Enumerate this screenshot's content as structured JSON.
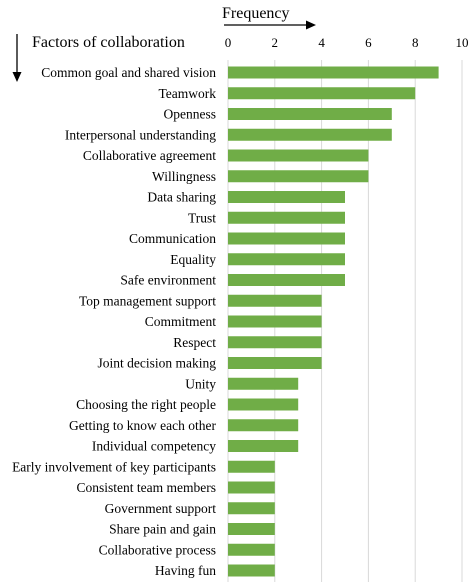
{
  "chart_data": {
    "type": "bar",
    "orientation": "horizontal",
    "xlabel": "Frequency",
    "ylabel": "Factors of collaboration",
    "xlim": [
      0,
      10
    ],
    "xticks": [
      0,
      2,
      4,
      6,
      8,
      10
    ],
    "grid": "vertical",
    "bar_color": "#70ad47",
    "grid_color": "#d9d9d9",
    "categories": [
      "Common goal and shared vision",
      "Teamwork",
      "Openness",
      "Interpersonal understanding",
      "Collaborative agreement",
      "Willingness",
      "Data sharing",
      "Trust",
      "Communication",
      "Equality",
      "Safe environment",
      "Top management support",
      "Commitment",
      "Respect",
      "Joint decision making",
      "Unity",
      "Choosing the right people",
      "Getting to know each other",
      "Individual competency",
      "Early involvement of key participants",
      "Consistent team members",
      "Government support",
      "Share pain and gain",
      "Collaborative process",
      "Having fun"
    ],
    "values": [
      9,
      8,
      7,
      7,
      6,
      6,
      5,
      5,
      5,
      5,
      5,
      4,
      4,
      4,
      4,
      3,
      3,
      3,
      3,
      2,
      2,
      2,
      2,
      2,
      2
    ]
  }
}
